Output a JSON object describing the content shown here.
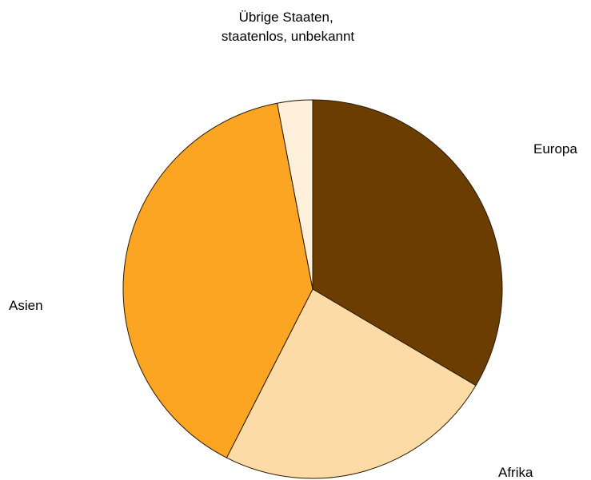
{
  "chart_data": {
    "type": "pie",
    "title": "",
    "start_angle_deg": 0,
    "direction": "clockwise",
    "slices": [
      {
        "label": "Europa",
        "value": 33.5,
        "color": "#6b3d00"
      },
      {
        "label": "Afrika",
        "value": 24.0,
        "color": "#fddba6"
      },
      {
        "label": "Asien",
        "value": 39.5,
        "color": "#fba523"
      },
      {
        "label": "Übrige Staaten, staatenlos, unbekannt",
        "label_lines": [
          "Übrige Staaten,",
          "staatenlos, unbekannt"
        ],
        "value": 3.0,
        "color": "#fff0dc"
      }
    ]
  }
}
